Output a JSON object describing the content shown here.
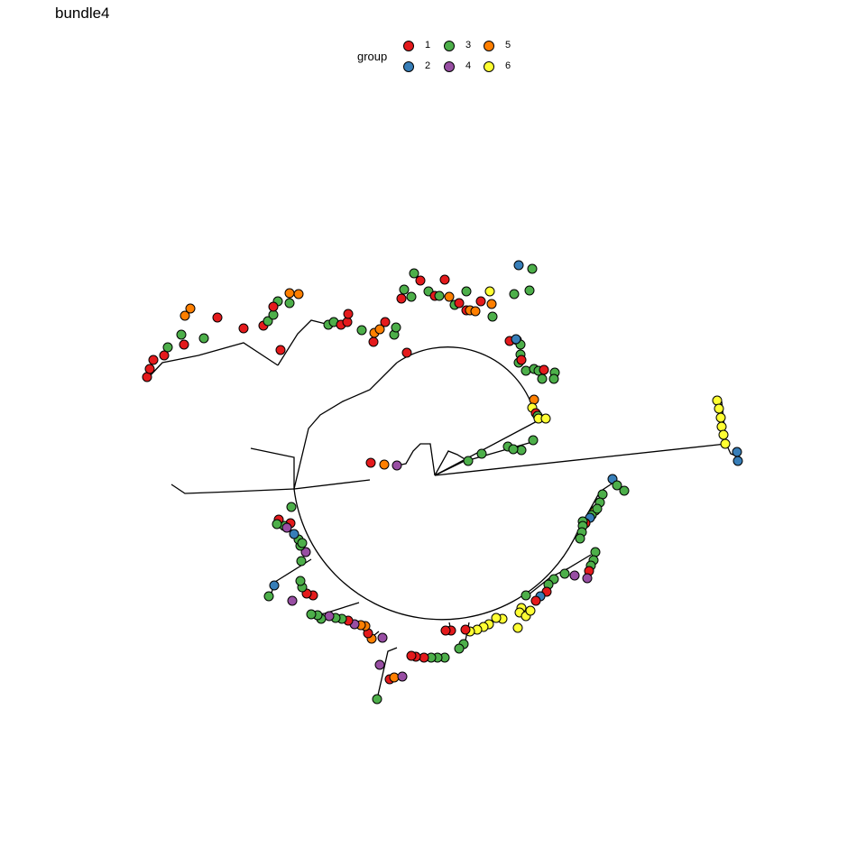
{
  "title": "bundle4",
  "legend": {
    "title": "group",
    "items": [
      {
        "label": "1",
        "color": "#E41A1C"
      },
      {
        "label": "2",
        "color": "#377EB8"
      },
      {
        "label": "3",
        "color": "#4DAF4A"
      },
      {
        "label": "4",
        "color": "#984EA3"
      },
      {
        "label": "5",
        "color": "#FF7F00"
      },
      {
        "label": "6",
        "color": "#FFFF33"
      }
    ]
  },
  "tree": {
    "layout": "fan",
    "tip_colors_in_order": [
      "1",
      "1",
      "1",
      "1",
      "3",
      "1",
      "5",
      "5",
      "3",
      "3",
      "1",
      "1",
      "1",
      "3",
      "3",
      "3",
      "1",
      "5",
      "5",
      "3",
      "1",
      "3",
      "3",
      "1",
      "1",
      "1",
      "3",
      "5",
      "5",
      "1",
      "3",
      "1",
      "1",
      "3",
      "3",
      "1",
      "3",
      "3",
      "1",
      "3",
      "1",
      "3",
      "5",
      "3",
      "1",
      "1",
      "5",
      "5",
      "1",
      "6",
      "5",
      "3",
      "3",
      "1",
      "3",
      "2",
      "3",
      "3",
      "1",
      "1",
      "3",
      "2",
      "3",
      "3",
      "1",
      "3",
      "3",
      "3",
      "3",
      "1",
      "3",
      "3",
      "5",
      "6",
      "1",
      "3",
      "6",
      "6",
      "6",
      "6",
      "6",
      "6",
      "6",
      "6",
      "2",
      "2",
      "2",
      "3",
      "3",
      "3",
      "3",
      "6",
      "3",
      "3",
      "2",
      "1",
      "3",
      "3",
      "3",
      "3",
      "3",
      "3",
      "3",
      "1",
      "4",
      "4",
      "3",
      "3",
      "3",
      "1",
      "2",
      "1",
      "3",
      "6",
      "6",
      "6",
      "6",
      "6",
      "6",
      "6",
      "6",
      "6",
      "6",
      "6",
      "1",
      "1",
      "1",
      "3",
      "3",
      "3",
      "3",
      "3",
      "1",
      "1",
      "1",
      "4",
      "5",
      "1",
      "5",
      "5",
      "4",
      "1",
      "3",
      "3",
      "4",
      "3",
      "3",
      "3",
      "1",
      "1",
      "3",
      "3",
      "4",
      "2",
      "3",
      "3",
      "4",
      "3",
      "3",
      "2",
      "1",
      "3",
      "4",
      "1",
      "3",
      "3",
      "3",
      "4",
      "1",
      "5",
      "4",
      "3",
      "1",
      "5",
      "4",
      "3",
      "3",
      "3",
      "3",
      "3",
      "3",
      "3",
      "3",
      "3",
      "3",
      "3",
      "6",
      "6",
      "4",
      "4"
    ]
  }
}
